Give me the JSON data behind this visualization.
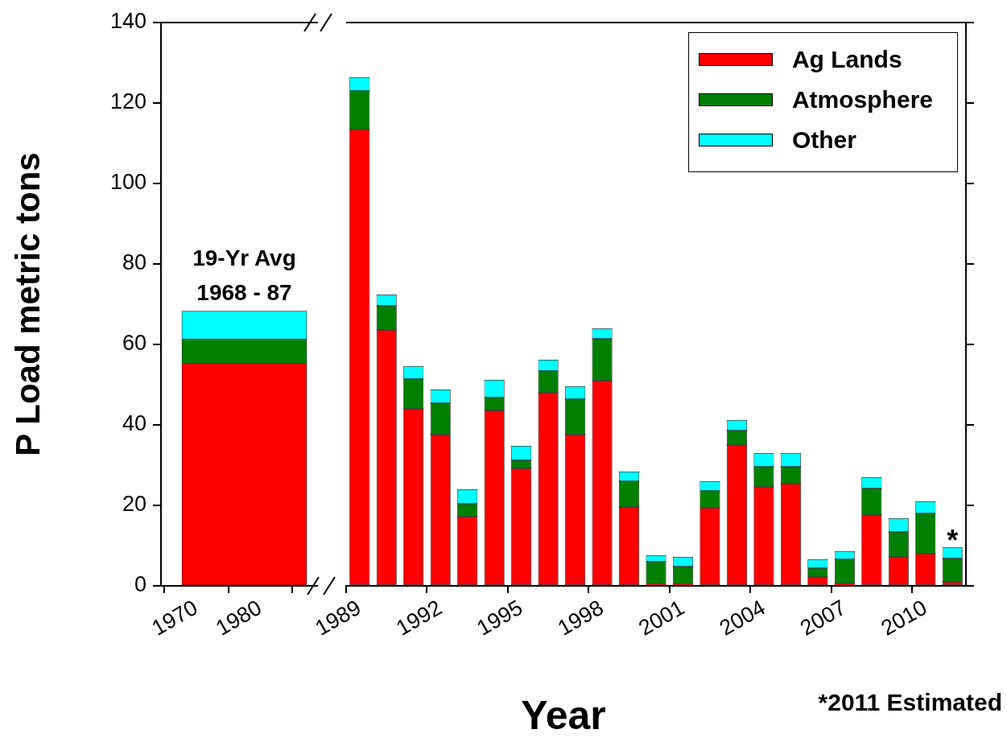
{
  "chart_data": [
    {
      "type": "bar",
      "stacked": true,
      "x": [
        1977.5
      ],
      "xlim": [
        1964.5,
        1989
      ],
      "xticks": [
        1970,
        1980
      ],
      "ylim": [
        0,
        140
      ],
      "yticks": [
        0,
        20,
        40,
        60,
        80,
        100,
        120,
        140
      ],
      "ylabel": "P Load metric tons",
      "series": [
        {
          "color": "#ff0000",
          "values": [
            55.3
          ]
        },
        {
          "color": "#008000",
          "values": [
            6
          ]
        },
        {
          "color": "#00ffff",
          "values": [
            7
          ]
        }
      ],
      "annotations": [
        {
          "text": "19-Yr Avg\n1968 - 87",
          "x": 1977.5,
          "y": 68.3
        }
      ]
    },
    {
      "type": "bar",
      "stacked": true,
      "categories": [
        "1989",
        null,
        null,
        "1992",
        null,
        null,
        "1995",
        null,
        null,
        "1998",
        null,
        null,
        "2001",
        null,
        null,
        "2004",
        null,
        null,
        "2007",
        null,
        null,
        "2010",
        null
      ],
      "ylim": [
        0,
        140
      ],
      "yticks": [
        0,
        20,
        40,
        60,
        80,
        100,
        120,
        140
      ],
      "tick_labels": "x",
      "xlabel": "Year",
      "legend": "top right",
      "series": [
        {
          "name": "Ag Lands",
          "color": "#ff0000",
          "values": [
            113.4,
            63.6,
            44,
            37.6,
            17.2,
            43.6,
            29.2,
            48,
            37.6,
            51,
            19.6,
            0.4,
            0.4,
            19.4,
            35,
            24.6,
            25.4,
            2.2,
            0.6,
            17.6,
            7.2,
            8,
            1
          ]
        },
        {
          "name": "Atmosphere",
          "color": "#008000",
          "values": [
            9.6,
            6,
            7.4,
            7.8,
            3.2,
            3.2,
            2,
            5.4,
            8.8,
            10.4,
            6.4,
            5.6,
            4.4,
            4.2,
            3.6,
            5,
            4.2,
            2.2,
            6,
            6.6,
            6.2,
            10,
            5.8
          ]
        },
        {
          "name": "Other",
          "color": "#00ffff",
          "values": [
            3.4,
            2.8,
            3.2,
            3.4,
            3.6,
            4.4,
            3.6,
            2.8,
            3.2,
            2.6,
            2.4,
            1.6,
            2.4,
            2.4,
            2.6,
            3.4,
            3.4,
            2.2,
            2,
            2.8,
            3.4,
            3,
            2.8
          ]
        }
      ],
      "annotations": [
        {
          "text": "*",
          "y": 9.6
        },
        "*2011 Estimated"
      ]
    }
  ]
}
